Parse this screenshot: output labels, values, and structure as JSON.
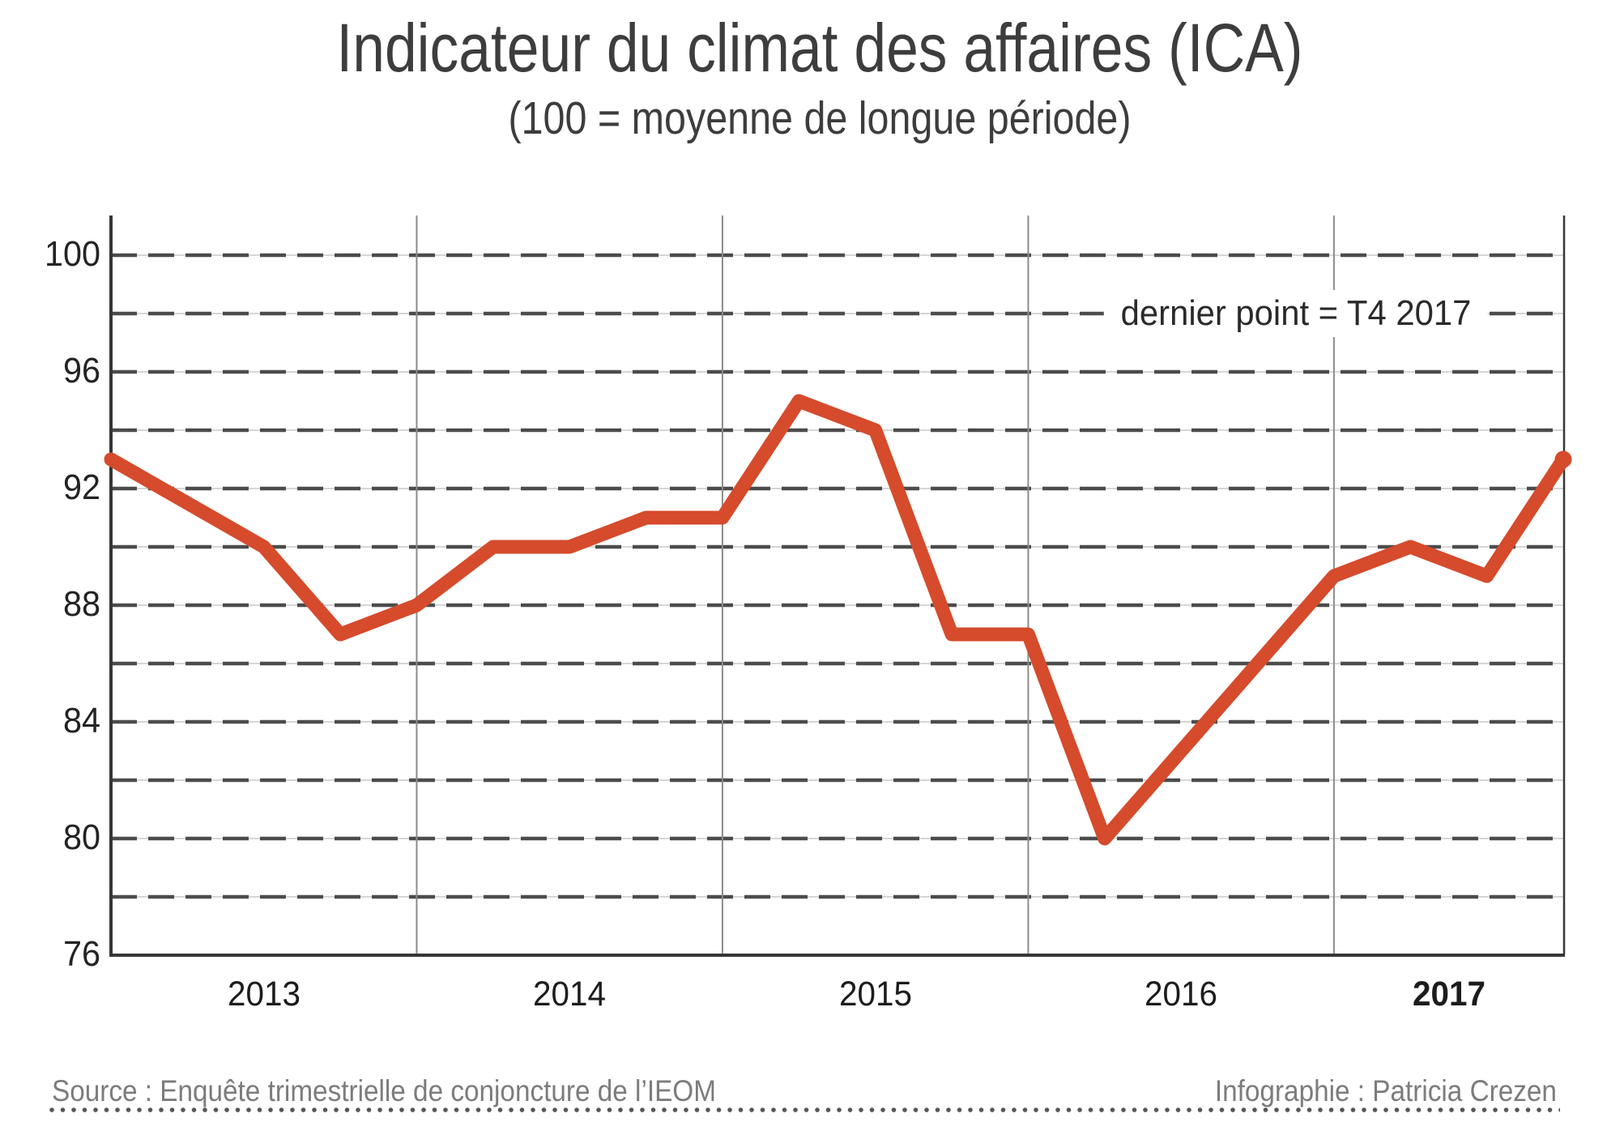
{
  "header": {
    "title": "Indicateur du climat des affaires (ICA)",
    "subtitle": "(100 = moyenne de longue période)"
  },
  "annotation": "dernier point = T4 2017",
  "footer": {
    "source": "Source : Enquête trimestrielle de conjoncture de l’IEOM",
    "credit": "Infographie : Patricia Crezen"
  },
  "colors": {
    "line": "#d54b2c",
    "axis": "#363636",
    "grid_dash": "#4c4c4c",
    "grid_hairline": "#c9c9c9",
    "year_line": "#8c8c8c",
    "tick_text": "#232323",
    "footer_text": "#7c7c7c"
  },
  "chart_data": {
    "type": "line",
    "title": "Indicateur du climat des affaires (ICA)",
    "subtitle": "(100 = moyenne de longue période)",
    "x": [
      "T1 2013",
      "T2 2013",
      "T3 2013",
      "T4 2013",
      "T1 2014",
      "T2 2014",
      "T3 2014",
      "T4 2014",
      "T1 2015",
      "T2 2015",
      "T3 2015",
      "T4 2015",
      "T1 2016",
      "T2 2016",
      "T3 2016",
      "T4 2016",
      "T1 2017",
      "T2 2017",
      "T3 2017",
      "T4 2017"
    ],
    "values": [
      93,
      91.5,
      90,
      87,
      88,
      90,
      90,
      91,
      91,
      95,
      94,
      87,
      87,
      80,
      83,
      86,
      89,
      90,
      89,
      93
    ],
    "x_year_labels": [
      {
        "label": "2013",
        "bold": false
      },
      {
        "label": "2014",
        "bold": false
      },
      {
        "label": "2015",
        "bold": false
      },
      {
        "label": "2016",
        "bold": false
      },
      {
        "label": "2017",
        "bold": true
      }
    ],
    "y_ticks": [
      100,
      96,
      92,
      88,
      84,
      80,
      76
    ],
    "ylim": [
      76,
      100
    ],
    "grid_step": 2,
    "grid": "dashed horizontal lines every 2 units; thin solid vertical lines at year boundaries",
    "legend_position": "none",
    "annotation": "dernier point = T4 2017",
    "last_point": {
      "quarter": "T4 2017",
      "value": 93
    }
  }
}
